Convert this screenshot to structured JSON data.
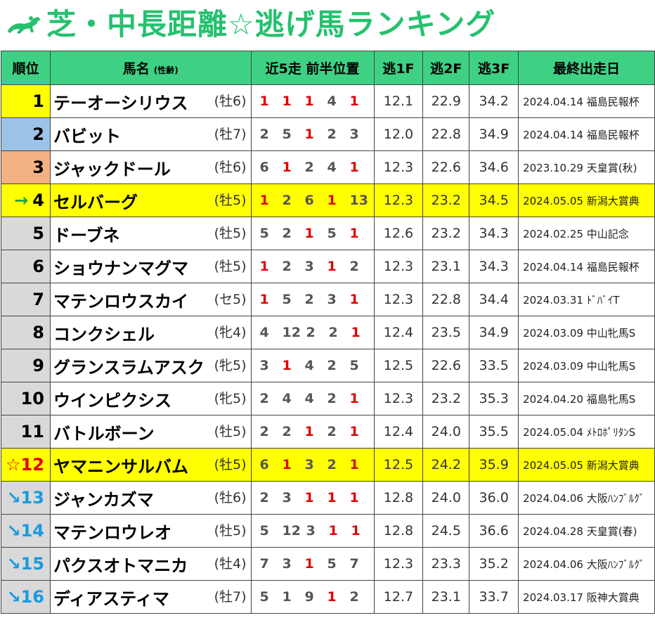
{
  "header": {
    "title": "芝・中長距離☆逃げ馬ランキング",
    "icon": "horse-racing-icon",
    "title_color": "#25c16f"
  },
  "columns": {
    "rank": "順位",
    "name": "馬名",
    "sex_age": "(性齢)",
    "positions": "近5走 前半位置",
    "f1": "逃1F",
    "f2": "逃2F",
    "f3": "逃3F",
    "last_race": "最終出走日"
  },
  "colors": {
    "header_green": "#3ed184",
    "highlight_yellow": "#ffff00",
    "rank1": "#ffff00",
    "rank2": "#9dc3e6",
    "rank3": "#f4b183",
    "red_position": "#e00000",
    "up_arrow": "#22a24a",
    "down_arrow": "#1a9ae0"
  },
  "rows": [
    {
      "rank": "1",
      "mark": "",
      "name": "テーオーシリウス",
      "sex": "(牡6)",
      "pos": [
        "1",
        "1",
        "1",
        "4",
        "1"
      ],
      "red": [
        true,
        true,
        true,
        false,
        true
      ],
      "f1": "12.1",
      "f2": "22.9",
      "f3": "34.2",
      "race": "2024.04.14 福島民報杯",
      "hl": false,
      "rankColor": "#ffff00"
    },
    {
      "rank": "2",
      "mark": "",
      "name": "バビット",
      "sex": "(牡7)",
      "pos": [
        "2",
        "5",
        "1",
        "2",
        "3"
      ],
      "red": [
        false,
        false,
        true,
        false,
        false
      ],
      "f1": "12.0",
      "f2": "22.8",
      "f3": "34.9",
      "race": "2024.04.14 福島民報杯",
      "hl": false,
      "rankColor": "#9dc3e6"
    },
    {
      "rank": "3",
      "mark": "",
      "name": "ジャックドール",
      "sex": "(牡6)",
      "pos": [
        "6",
        "1",
        "2",
        "4",
        "1"
      ],
      "red": [
        false,
        true,
        false,
        false,
        true
      ],
      "f1": "12.3",
      "f2": "22.6",
      "f3": "34.6",
      "race": "2023.10.29 天皇賞(秋)",
      "hl": false,
      "rankColor": "#f4b183"
    },
    {
      "rank": "4",
      "mark": "→",
      "markType": "up",
      "name": "セルバーグ",
      "sex": "(牡5)",
      "pos": [
        "1",
        "2",
        "6",
        "1",
        "13"
      ],
      "red": [
        true,
        false,
        false,
        true,
        false
      ],
      "f1": "12.3",
      "f2": "23.2",
      "f3": "34.5",
      "race": "2024.05.05 新潟大賞典",
      "hl": true,
      "rankColor": "#ffff00"
    },
    {
      "rank": "5",
      "mark": "",
      "name": "ドーブネ",
      "sex": "(牡5)",
      "pos": [
        "5",
        "2",
        "1",
        "5",
        "1"
      ],
      "red": [
        false,
        false,
        true,
        false,
        true
      ],
      "f1": "12.6",
      "f2": "23.2",
      "f3": "34.3",
      "race": "2024.02.25 中山記念",
      "hl": false
    },
    {
      "rank": "6",
      "mark": "",
      "name": "ショウナンマグマ",
      "sex": "(牡5)",
      "pos": [
        "1",
        "2",
        "3",
        "1",
        "2"
      ],
      "red": [
        true,
        false,
        false,
        true,
        false
      ],
      "f1": "12.3",
      "f2": "23.1",
      "f3": "34.3",
      "race": "2024.04.14 福島民報杯",
      "hl": false
    },
    {
      "rank": "7",
      "mark": "",
      "name": "マテンロウスカイ",
      "sex": "(セ5)",
      "pos": [
        "1",
        "5",
        "2",
        "3",
        "1"
      ],
      "red": [
        true,
        false,
        false,
        false,
        true
      ],
      "f1": "12.3",
      "f2": "22.8",
      "f3": "34.4",
      "race": "2024.03.31 ﾄﾞﾊﾞｲT",
      "hl": false
    },
    {
      "rank": "8",
      "mark": "",
      "name": "コンクシェル",
      "sex": "(牝4)",
      "pos": [
        "4",
        "12",
        "2",
        "2",
        "1"
      ],
      "red": [
        false,
        false,
        false,
        false,
        true
      ],
      "f1": "12.4",
      "f2": "23.5",
      "f3": "34.9",
      "race": "2024.03.09 中山牝馬S",
      "hl": false
    },
    {
      "rank": "9",
      "mark": "",
      "name": "グランスラムアスク",
      "sex": "(牝5)",
      "pos": [
        "3",
        "1",
        "4",
        "2",
        "5"
      ],
      "red": [
        false,
        true,
        false,
        false,
        false
      ],
      "f1": "12.5",
      "f2": "22.6",
      "f3": "33.5",
      "race": "2024.03.09 中山牝馬S",
      "hl": false
    },
    {
      "rank": "10",
      "mark": "",
      "name": "ウインピクシス",
      "sex": "(牝5)",
      "pos": [
        "2",
        "4",
        "4",
        "2",
        "1"
      ],
      "red": [
        false,
        false,
        false,
        false,
        true
      ],
      "f1": "12.3",
      "f2": "23.2",
      "f3": "35.3",
      "race": "2024.04.20 福島牝馬S",
      "hl": false
    },
    {
      "rank": "11",
      "mark": "",
      "name": "バトルボーン",
      "sex": "(牡5)",
      "pos": [
        "2",
        "2",
        "1",
        "2",
        "1"
      ],
      "red": [
        false,
        false,
        true,
        false,
        true
      ],
      "f1": "12.4",
      "f2": "24.0",
      "f3": "35.5",
      "race": "2024.05.04 ﾒﾄﾛﾎﾟﾘﾀﾝS",
      "hl": false
    },
    {
      "rank": "12",
      "mark": "☆",
      "markType": "star",
      "name": "ヤマニンサルバム",
      "sex": "(牡5)",
      "pos": [
        "6",
        "1",
        "3",
        "2",
        "1"
      ],
      "red": [
        false,
        true,
        false,
        false,
        true
      ],
      "f1": "12.5",
      "f2": "24.2",
      "f3": "35.9",
      "race": "2024.05.05 新潟大賞典",
      "hl": true,
      "rankColor": "#ffff00"
    },
    {
      "rank": "13",
      "mark": "↘",
      "markType": "down",
      "name": "ジャンカズマ",
      "sex": "(牡6)",
      "pos": [
        "2",
        "3",
        "1",
        "1",
        "1"
      ],
      "red": [
        false,
        false,
        true,
        true,
        true
      ],
      "f1": "12.8",
      "f2": "24.0",
      "f3": "36.0",
      "race": "2024.04.06 大阪ﾊﾝﾌﾞﾙｸﾞ",
      "hl": false
    },
    {
      "rank": "14",
      "mark": "↘",
      "markType": "down",
      "name": "マテンロウレオ",
      "sex": "(牡5)",
      "pos": [
        "5",
        "12",
        "3",
        "1",
        "1"
      ],
      "red": [
        false,
        false,
        false,
        true,
        true
      ],
      "f1": "12.8",
      "f2": "24.5",
      "f3": "36.6",
      "race": "2024.04.28 天皇賞(春)",
      "hl": false
    },
    {
      "rank": "15",
      "mark": "↘",
      "markType": "down",
      "name": "パクスオトマニカ",
      "sex": "(牡4)",
      "pos": [
        "7",
        "3",
        "1",
        "5",
        "7"
      ],
      "red": [
        false,
        false,
        true,
        false,
        false
      ],
      "f1": "12.3",
      "f2": "23.3",
      "f3": "35.2",
      "race": "2024.04.06 大阪ﾊﾝﾌﾞﾙｸﾞ",
      "hl": false
    },
    {
      "rank": "16",
      "mark": "↘",
      "markType": "down",
      "name": "ディアスティマ",
      "sex": "(牡7)",
      "pos": [
        "5",
        "1",
        "9",
        "1",
        "2"
      ],
      "red": [
        false,
        false,
        false,
        true,
        false
      ],
      "f1": "12.7",
      "f2": "23.1",
      "f3": "33.7",
      "race": "2024.03.17 阪神大賞典",
      "hl": false
    }
  ]
}
